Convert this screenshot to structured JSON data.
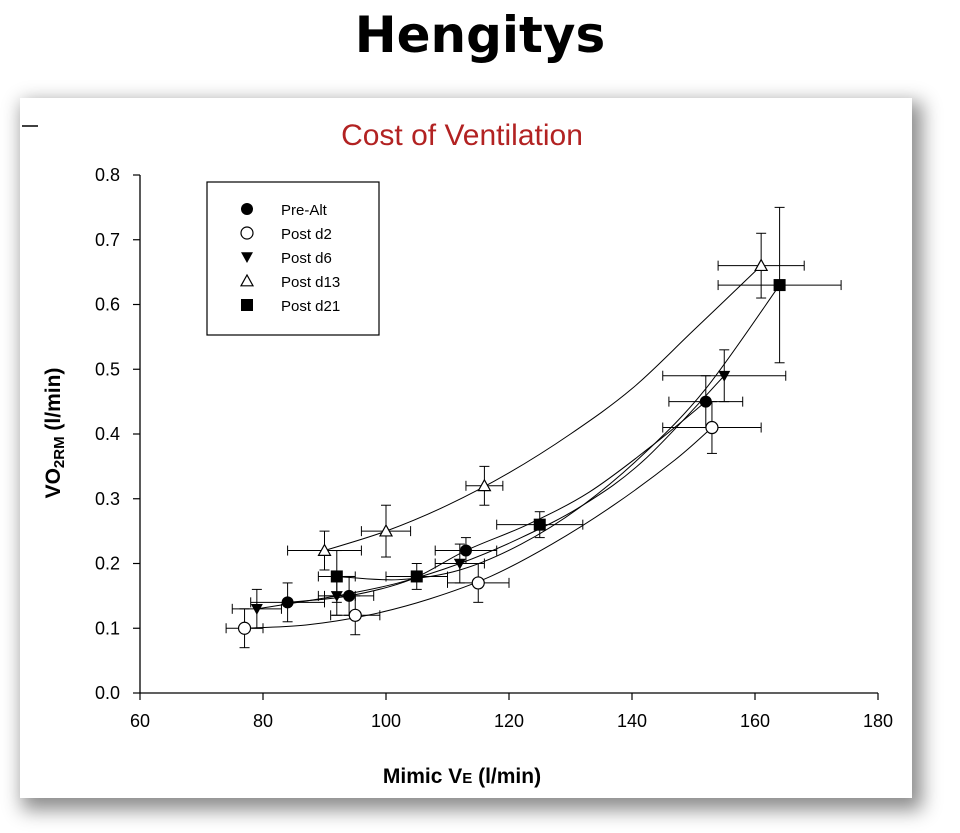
{
  "slide": {
    "title": "Hengitys"
  },
  "chart_data": {
    "type": "scatter",
    "title": "Cost of Ventilation",
    "xlabel": {
      "main": "Mimic V",
      "sub": "E",
      "unit": " (l/min)"
    },
    "ylabel": {
      "main": "VO",
      "sub": "2RM",
      "unit": " (l/min)"
    },
    "xlim": [
      60,
      180
    ],
    "ylim": [
      0.0,
      0.8
    ],
    "xticks": [
      60,
      80,
      100,
      120,
      140,
      160,
      180
    ],
    "yticks": [
      0.0,
      0.1,
      0.2,
      0.3,
      0.4,
      0.5,
      0.6,
      0.7,
      0.8
    ],
    "ytick_labels": [
      "0.0",
      "0.1",
      "0.2",
      "0.3",
      "0.4",
      "0.5",
      "0.6",
      "0.7",
      "0.8"
    ],
    "legend_position": "top-left",
    "grid": false,
    "series": [
      {
        "name": "Pre-Alt",
        "marker": "filled-circle",
        "points": [
          {
            "x": 84,
            "y": 0.14,
            "xerr": 6,
            "yerr": 0.03
          },
          {
            "x": 94,
            "y": 0.15,
            "xerr": 4,
            "yerr": 0.03
          },
          {
            "x": 113,
            "y": 0.22,
            "xerr": 5,
            "yerr": 0.02
          },
          {
            "x": 152,
            "y": 0.45,
            "xerr": 6,
            "yerr": 0.04
          }
        ],
        "curve": [
          [
            84,
            0.14
          ],
          [
            94,
            0.15
          ],
          [
            104,
            0.175
          ],
          [
            113,
            0.22
          ],
          [
            123,
            0.26
          ],
          [
            133,
            0.31
          ],
          [
            143,
            0.38
          ],
          [
            152,
            0.45
          ]
        ]
      },
      {
        "name": "Post d2",
        "marker": "open-circle",
        "points": [
          {
            "x": 77,
            "y": 0.1,
            "xerr": 3,
            "yerr": 0.03
          },
          {
            "x": 95,
            "y": 0.12,
            "xerr": 4,
            "yerr": 0.03
          },
          {
            "x": 115,
            "y": 0.17,
            "xerr": 5,
            "yerr": 0.03
          },
          {
            "x": 153,
            "y": 0.41,
            "xerr": 8,
            "yerr": 0.04
          }
        ],
        "curve": [
          [
            77,
            0.1
          ],
          [
            87,
            0.105
          ],
          [
            97,
            0.12
          ],
          [
            107,
            0.145
          ],
          [
            117,
            0.18
          ],
          [
            127,
            0.23
          ],
          [
            137,
            0.29
          ],
          [
            147,
            0.36
          ],
          [
            153,
            0.41
          ]
        ]
      },
      {
        "name": "Post d6",
        "marker": "filled-triangle-down",
        "points": [
          {
            "x": 79,
            "y": 0.13,
            "xerr": 4,
            "yerr": 0.03
          },
          {
            "x": 92,
            "y": 0.15,
            "xerr": 3,
            "yerr": 0.03
          },
          {
            "x": 112,
            "y": 0.2,
            "xerr": 4,
            "yerr": 0.03
          },
          {
            "x": 155,
            "y": 0.49,
            "xerr": 10,
            "yerr": 0.04
          }
        ],
        "curve": [
          [
            79,
            0.13
          ],
          [
            92,
            0.15
          ],
          [
            102,
            0.17
          ],
          [
            112,
            0.2
          ],
          [
            122,
            0.24
          ],
          [
            132,
            0.29
          ],
          [
            142,
            0.36
          ],
          [
            155,
            0.49
          ]
        ]
      },
      {
        "name": "Post d13",
        "marker": "open-triangle-up",
        "points": [
          {
            "x": 90,
            "y": 0.22,
            "xerr": 6,
            "yerr": 0.03
          },
          {
            "x": 100,
            "y": 0.25,
            "xerr": 4,
            "yerr": 0.04
          },
          {
            "x": 116,
            "y": 0.32,
            "xerr": 3,
            "yerr": 0.03
          },
          {
            "x": 161,
            "y": 0.66,
            "xerr": 7,
            "yerr": 0.05
          }
        ],
        "curve": [
          [
            90,
            0.22
          ],
          [
            100,
            0.25
          ],
          [
            110,
            0.29
          ],
          [
            120,
            0.34
          ],
          [
            130,
            0.4
          ],
          [
            140,
            0.47
          ],
          [
            150,
            0.56
          ],
          [
            161,
            0.66
          ]
        ]
      },
      {
        "name": "Post d21",
        "marker": "filled-square",
        "points": [
          {
            "x": 92,
            "y": 0.18,
            "xerr": 3,
            "yerr": 0.04
          },
          {
            "x": 105,
            "y": 0.18,
            "xerr": 5,
            "yerr": 0.02
          },
          {
            "x": 125,
            "y": 0.26,
            "xerr": 7,
            "yerr": 0.02
          },
          {
            "x": 164,
            "y": 0.63,
            "xerr": 10,
            "yerr": 0.12
          }
        ],
        "curve": [
          [
            92,
            0.18
          ],
          [
            102,
            0.175
          ],
          [
            112,
            0.19
          ],
          [
            122,
            0.23
          ],
          [
            132,
            0.29
          ],
          [
            142,
            0.37
          ],
          [
            152,
            0.47
          ],
          [
            164,
            0.63
          ]
        ]
      }
    ]
  }
}
